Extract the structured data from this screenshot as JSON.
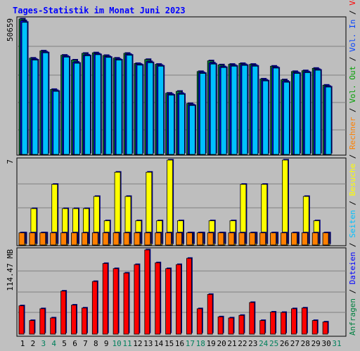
{
  "title": "Tages-Statistik im Monat Juni 2023",
  "colors": {
    "background": "#c0c0c0",
    "panel": "#bebebe",
    "grid": "#808080",
    "title": "#0000ff",
    "hits": "#008040",
    "files": "#0000ff",
    "pages": "#00c0ff",
    "visits": "#ffff00",
    "sites": "#ff8000",
    "kbin": "#0040ff",
    "kbout": "#00a000",
    "volume": "#ff0000",
    "weekend": "#00805c",
    "weekday": "#000000"
  },
  "chart_data": [
    {
      "type": "bar",
      "panel": "hits-files-pages",
      "ymax_label": "50659",
      "ylim": [
        0,
        50659
      ],
      "categories": [
        "1",
        "2",
        "3",
        "4",
        "5",
        "6",
        "7",
        "8",
        "9",
        "10",
        "11",
        "12",
        "13",
        "14",
        "15",
        "16",
        "17",
        "18",
        "19",
        "20",
        "21",
        "22",
        "23",
        "24",
        "25",
        "26",
        "27",
        "28",
        "29",
        "30",
        "31"
      ],
      "weekend_days": [
        "3",
        "4",
        "10",
        "11",
        "17",
        "18",
        "24",
        "25",
        "31"
      ],
      "series": [
        {
          "name": "Anfragen",
          "values": [
            50659,
            36000,
            38700,
            24300,
            37100,
            35300,
            37800,
            38000,
            37000,
            36000,
            37800,
            34000,
            35500,
            33700,
            22900,
            23600,
            19000,
            31000,
            35000,
            33500,
            33700,
            34000,
            33700,
            28200,
            33000,
            27900,
            31000,
            31300,
            32200,
            25900,
            0
          ]
        },
        {
          "name": "Dateien",
          "values": [
            50000,
            35600,
            38300,
            23900,
            36700,
            34500,
            37200,
            37600,
            36600,
            35600,
            37400,
            33700,
            34700,
            33300,
            22500,
            22800,
            18600,
            30600,
            34200,
            32800,
            33300,
            33600,
            33300,
            27800,
            32600,
            27400,
            30600,
            30900,
            31800,
            25500,
            0
          ]
        },
        {
          "name": "Seiten",
          "values": [
            49400,
            35300,
            38000,
            23600,
            36400,
            34100,
            36900,
            37300,
            36300,
            35300,
            37100,
            33400,
            34300,
            33000,
            22200,
            22500,
            18300,
            30300,
            33800,
            32500,
            33000,
            33300,
            33000,
            27500,
            32300,
            27000,
            30300,
            30600,
            31500,
            25200,
            0
          ]
        }
      ]
    },
    {
      "type": "bar",
      "panel": "visits-sites",
      "ymax_label": "7",
      "ylim": [
        0,
        7
      ],
      "series": [
        {
          "name": "Besuche",
          "values": [
            1,
            3,
            1,
            5,
            3,
            3,
            3,
            4,
            2,
            6,
            4,
            2,
            6,
            2,
            7,
            2,
            1,
            1,
            2,
            1,
            2,
            5,
            1,
            5,
            1,
            7,
            1,
            4,
            2,
            1,
            0
          ]
        },
        {
          "name": "Rechner",
          "values": [
            1,
            1,
            1,
            1,
            1,
            1,
            1,
            1,
            1,
            1,
            1,
            1,
            1,
            1,
            1,
            1,
            1,
            1,
            1,
            1,
            1,
            1,
            1,
            1,
            1,
            1,
            1,
            1,
            1,
            1,
            0
          ]
        }
      ]
    },
    {
      "type": "bar",
      "panel": "volume",
      "ymax_label": "114.47 MB",
      "ylim": [
        0,
        114.47
      ],
      "series": [
        {
          "name": "Volumen",
          "values": [
            38.5,
            18.5,
            34.5,
            22.0,
            58.5,
            39.5,
            35.5,
            71.5,
            96.0,
            89.0,
            83.0,
            94.5,
            114.47,
            97.0,
            89.0,
            94.5,
            103.0,
            34.5,
            54.0,
            23.5,
            22.0,
            25.5,
            43.0,
            18.5,
            30.0,
            29.5,
            34.5,
            35.5,
            18.5,
            16.5,
            0
          ]
        }
      ]
    }
  ],
  "right_labels": [
    {
      "text": "Anfragen",
      "color": "hits"
    },
    {
      "text": " / ",
      "color": "weekday"
    },
    {
      "text": "Dateien",
      "color": "files"
    },
    {
      "text": " / ",
      "color": "weekday"
    },
    {
      "text": "Seiten",
      "color": "pages"
    },
    {
      "text": " / ",
      "color": "weekday"
    },
    {
      "text": "Besuche",
      "color": "visits"
    },
    {
      "text": " / ",
      "color": "weekday"
    },
    {
      "text": "Rechner",
      "color": "sites"
    },
    {
      "text": " / ",
      "color": "weekday"
    },
    {
      "text": "Vol. Out",
      "color": "kbout"
    },
    {
      "text": " / ",
      "color": "weekday"
    },
    {
      "text": "Vol. In",
      "color": "kbin"
    },
    {
      "text": " / ",
      "color": "weekday"
    },
    {
      "text": "Volumen",
      "color": "volume"
    }
  ]
}
